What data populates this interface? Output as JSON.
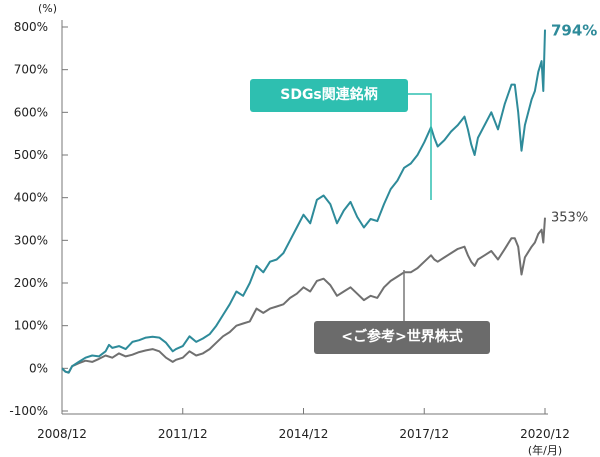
{
  "chart_data": {
    "type": "line",
    "unit_label": "(%)",
    "yticks": [
      "800%",
      "700%",
      "600%",
      "500%",
      "400%",
      "300%",
      "200%",
      "100%",
      "0%",
      "-100%"
    ],
    "ytick_values": [
      800,
      700,
      600,
      500,
      400,
      300,
      200,
      100,
      0,
      -100
    ],
    "ylim": [
      -100,
      800
    ],
    "xlim": [
      0,
      144
    ],
    "xticks": [
      {
        "label": "2008/12",
        "x": 0
      },
      {
        "label": "2011/12",
        "x": 36
      },
      {
        "label": "2014/12",
        "x": 72
      },
      {
        "label": "2017/12",
        "x": 108
      },
      {
        "label": "2020/12",
        "x": 144
      }
    ],
    "xunit_label": "(年/月)",
    "series": [
      {
        "name": "SDGs関連銘柄",
        "color": "#2e8b9a",
        "label_color": "#2ebfb0",
        "end_label": "794%",
        "points": [
          [
            0,
            0
          ],
          [
            1,
            -8
          ],
          [
            2,
            -10
          ],
          [
            3,
            5
          ],
          [
            5,
            15
          ],
          [
            7,
            25
          ],
          [
            9,
            30
          ],
          [
            11,
            28
          ],
          [
            13,
            40
          ],
          [
            14,
            55
          ],
          [
            15,
            48
          ],
          [
            17,
            52
          ],
          [
            19,
            45
          ],
          [
            21,
            62
          ],
          [
            23,
            66
          ],
          [
            25,
            72
          ],
          [
            27,
            74
          ],
          [
            29,
            72
          ],
          [
            31,
            60
          ],
          [
            33,
            40
          ],
          [
            34,
            45
          ],
          [
            36,
            52
          ],
          [
            38,
            75
          ],
          [
            40,
            62
          ],
          [
            42,
            70
          ],
          [
            44,
            80
          ],
          [
            46,
            100
          ],
          [
            48,
            125
          ],
          [
            50,
            150
          ],
          [
            52,
            180
          ],
          [
            54,
            170
          ],
          [
            56,
            200
          ],
          [
            58,
            240
          ],
          [
            60,
            225
          ],
          [
            62,
            250
          ],
          [
            64,
            255
          ],
          [
            66,
            270
          ],
          [
            68,
            300
          ],
          [
            70,
            330
          ],
          [
            72,
            360
          ],
          [
            74,
            340
          ],
          [
            76,
            395
          ],
          [
            78,
            405
          ],
          [
            80,
            385
          ],
          [
            82,
            340
          ],
          [
            84,
            370
          ],
          [
            86,
            390
          ],
          [
            88,
            355
          ],
          [
            90,
            330
          ],
          [
            92,
            350
          ],
          [
            94,
            345
          ],
          [
            96,
            385
          ],
          [
            98,
            420
          ],
          [
            100,
            440
          ],
          [
            102,
            470
          ],
          [
            104,
            480
          ],
          [
            106,
            500
          ],
          [
            108,
            530
          ],
          [
            110,
            565
          ],
          [
            111,
            540
          ],
          [
            112,
            520
          ],
          [
            114,
            535
          ],
          [
            116,
            555
          ],
          [
            118,
            570
          ],
          [
            120,
            590
          ],
          [
            121,
            560
          ],
          [
            122,
            525
          ],
          [
            123,
            500
          ],
          [
            124,
            540
          ],
          [
            126,
            570
          ],
          [
            128,
            600
          ],
          [
            130,
            560
          ],
          [
            132,
            620
          ],
          [
            134,
            665
          ],
          [
            135,
            665
          ],
          [
            136,
            600
          ],
          [
            137,
            510
          ],
          [
            138,
            570
          ],
          [
            140,
            630
          ],
          [
            141,
            650
          ],
          [
            142,
            695
          ],
          [
            143,
            720
          ],
          [
            143.5,
            650
          ],
          [
            144,
            794
          ]
        ]
      },
      {
        "name": "<ご参考>世界株式",
        "color": "#707070",
        "label_color": "#6b6b6b",
        "end_label": "353%",
        "points": [
          [
            0,
            0
          ],
          [
            1,
            -8
          ],
          [
            2,
            -10
          ],
          [
            3,
            5
          ],
          [
            5,
            12
          ],
          [
            7,
            18
          ],
          [
            9,
            15
          ],
          [
            11,
            22
          ],
          [
            13,
            30
          ],
          [
            15,
            25
          ],
          [
            17,
            35
          ],
          [
            19,
            28
          ],
          [
            21,
            32
          ],
          [
            23,
            38
          ],
          [
            25,
            42
          ],
          [
            27,
            45
          ],
          [
            29,
            40
          ],
          [
            31,
            25
          ],
          [
            33,
            15
          ],
          [
            34,
            20
          ],
          [
            36,
            25
          ],
          [
            38,
            40
          ],
          [
            40,
            30
          ],
          [
            42,
            35
          ],
          [
            44,
            45
          ],
          [
            46,
            60
          ],
          [
            48,
            75
          ],
          [
            50,
            85
          ],
          [
            52,
            100
          ],
          [
            54,
            105
          ],
          [
            56,
            110
          ],
          [
            58,
            140
          ],
          [
            60,
            130
          ],
          [
            62,
            140
          ],
          [
            64,
            145
          ],
          [
            66,
            150
          ],
          [
            68,
            165
          ],
          [
            70,
            175
          ],
          [
            72,
            190
          ],
          [
            74,
            180
          ],
          [
            76,
            205
          ],
          [
            78,
            210
          ],
          [
            80,
            195
          ],
          [
            82,
            170
          ],
          [
            84,
            180
          ],
          [
            86,
            190
          ],
          [
            88,
            175
          ],
          [
            90,
            160
          ],
          [
            92,
            170
          ],
          [
            94,
            165
          ],
          [
            96,
            190
          ],
          [
            98,
            205
          ],
          [
            100,
            215
          ],
          [
            102,
            225
          ],
          [
            104,
            225
          ],
          [
            106,
            235
          ],
          [
            108,
            250
          ],
          [
            110,
            265
          ],
          [
            111,
            255
          ],
          [
            112,
            250
          ],
          [
            114,
            260
          ],
          [
            116,
            270
          ],
          [
            118,
            280
          ],
          [
            120,
            285
          ],
          [
            121,
            265
          ],
          [
            122,
            250
          ],
          [
            123,
            240
          ],
          [
            124,
            255
          ],
          [
            126,
            265
          ],
          [
            128,
            275
          ],
          [
            130,
            255
          ],
          [
            132,
            280
          ],
          [
            134,
            305
          ],
          [
            135,
            305
          ],
          [
            136,
            285
          ],
          [
            137,
            220
          ],
          [
            138,
            260
          ],
          [
            140,
            285
          ],
          [
            141,
            295
          ],
          [
            142,
            315
          ],
          [
            143,
            325
          ],
          [
            143.5,
            295
          ],
          [
            144,
            353
          ]
        ]
      }
    ]
  }
}
